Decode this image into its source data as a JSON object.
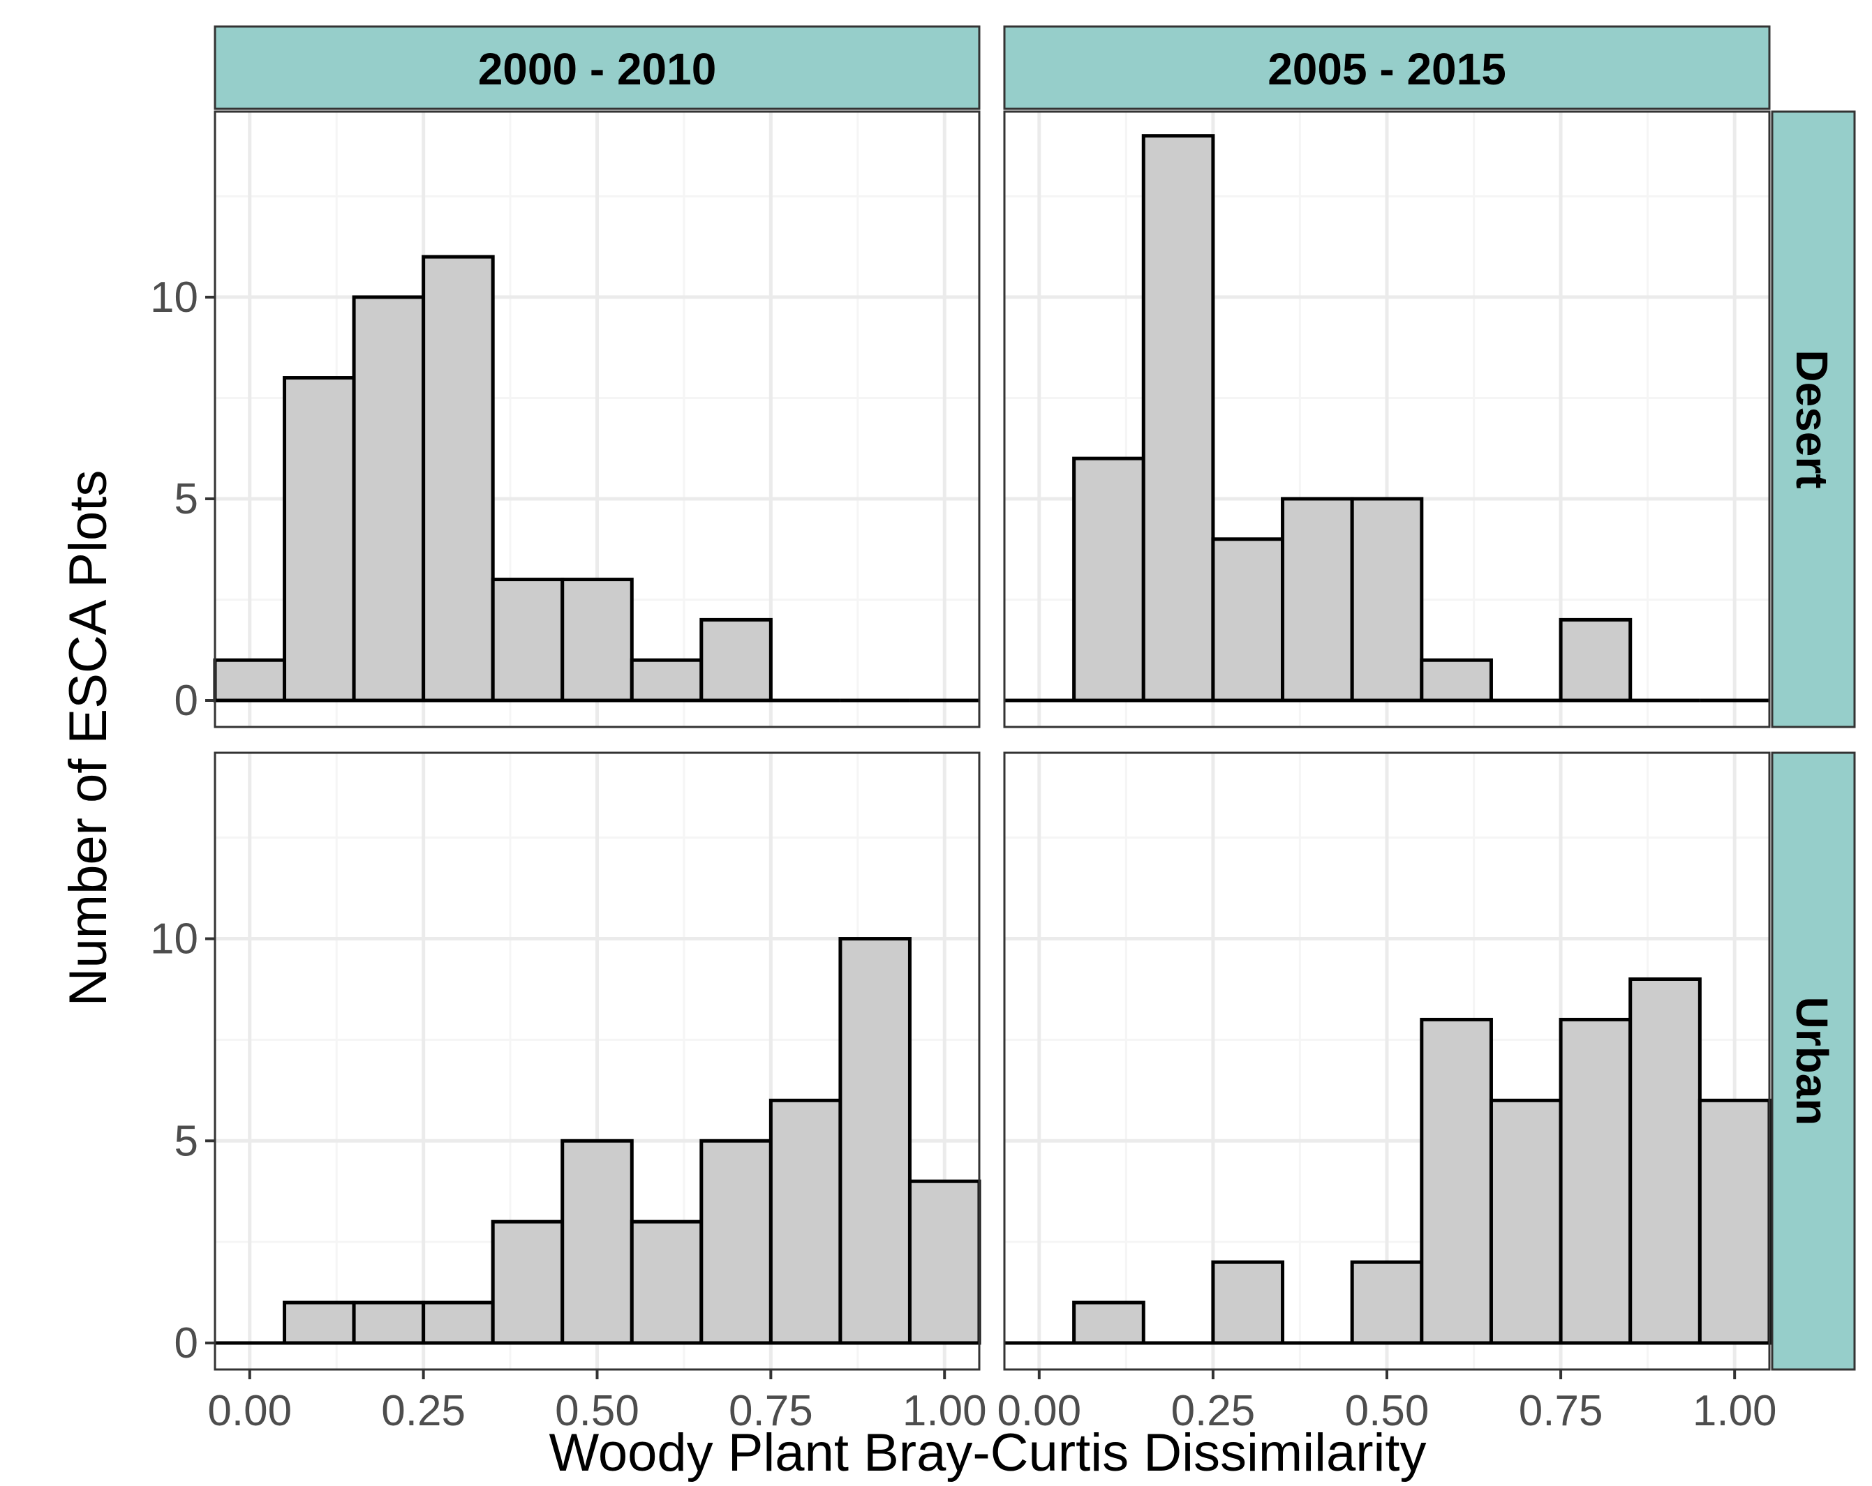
{
  "chart_data": {
    "type": "bar",
    "subtype": "faceted-histogram",
    "title": "",
    "xlabel": "Woody Plant Bray-Curtis Dissimilarity",
    "ylabel": "Number of ESCA Plots",
    "xlim": [
      -0.05,
      1.05
    ],
    "ylim": [
      0,
      14
    ],
    "x_ticks": [
      0,
      0.25,
      0.5,
      0.75,
      1
    ],
    "x_tick_labels": [
      "0.00",
      "0.25",
      "0.50",
      "0.75",
      "1.00"
    ],
    "y_ticks": [
      0,
      5,
      10
    ],
    "y_tick_labels": [
      "0",
      "5",
      "10"
    ],
    "bin_width": 0.1,
    "bin_centers": [
      0,
      0.1,
      0.2,
      0.3,
      0.4,
      0.5,
      0.6,
      0.7,
      0.8,
      0.9,
      1.0
    ],
    "column_labels": [
      "2000 - 2010",
      "2005 - 2015"
    ],
    "row_labels": [
      "Desert",
      "Urban"
    ],
    "grid": true,
    "colors": {
      "bar_fill": "#cccccc",
      "bar_stroke": "#000000",
      "strip_fill": "#96ceca",
      "strip_border": "#333333",
      "panel_border": "#333333",
      "grid_major": "#ebebeb",
      "grid_minor": "#f5f5f5",
      "tick_text": "#4d4d4d"
    },
    "panels": [
      {
        "column": "2000 - 2010",
        "row": "Desert",
        "counts": [
          1,
          8,
          10,
          11,
          3,
          3,
          1,
          2,
          0,
          0,
          0
        ]
      },
      {
        "column": "2005 - 2015",
        "row": "Desert",
        "counts": [
          0,
          6,
          14,
          4,
          5,
          5,
          1,
          0,
          2,
          0,
          0
        ]
      },
      {
        "column": "2000 - 2010",
        "row": "Urban",
        "counts": [
          0,
          1,
          1,
          1,
          3,
          5,
          3,
          5,
          6,
          10,
          4
        ]
      },
      {
        "column": "2005 - 2015",
        "row": "Urban",
        "counts": [
          0,
          1,
          0,
          2,
          0,
          2,
          8,
          6,
          8,
          9,
          6
        ]
      }
    ]
  }
}
